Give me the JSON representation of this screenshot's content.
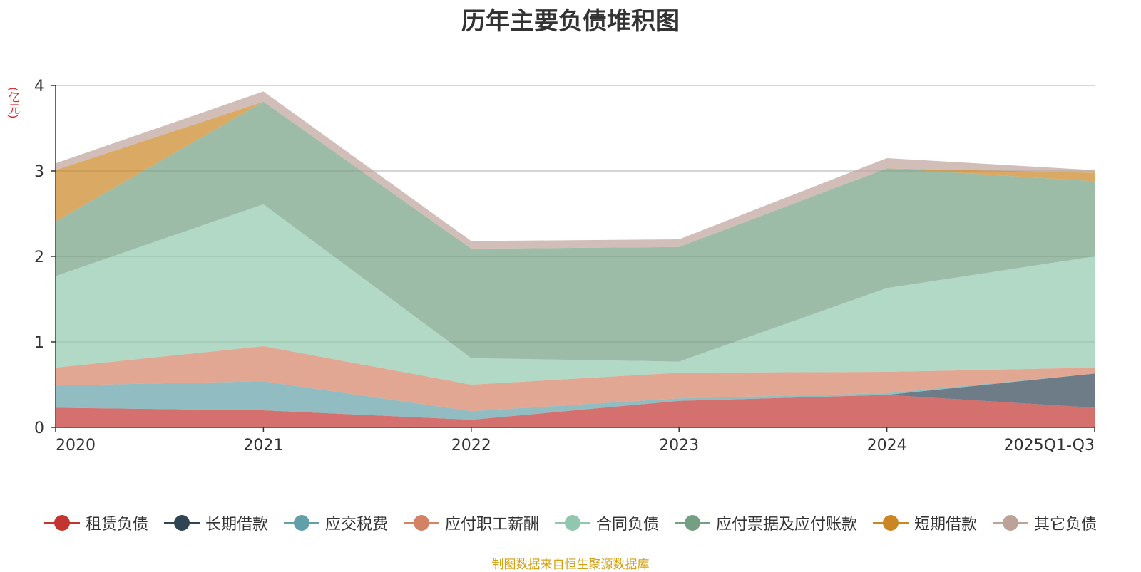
{
  "chart_data": {
    "type": "area",
    "stacked": true,
    "title": "历年主要负债堆积图",
    "ylabel": "(亿元)",
    "ylim": [
      0,
      4
    ],
    "yticks": [
      "0",
      "1",
      "2",
      "3",
      "4"
    ],
    "grid": true,
    "categories": [
      "2020",
      "2021",
      "2022",
      "2023",
      "2024",
      "2025Q1-Q3"
    ],
    "series": [
      {
        "name": "租赁负债",
        "color": "#c23531",
        "values": [
          0.23,
          0.2,
          0.09,
          0.31,
          0.38,
          0.23
        ]
      },
      {
        "name": "长期借款",
        "color": "#2f4554",
        "values": [
          0.0,
          0.0,
          0.0,
          0.0,
          0.0,
          0.4
        ]
      },
      {
        "name": "应交税费",
        "color": "#61a0a8",
        "values": [
          0.26,
          0.34,
          0.1,
          0.03,
          0.02,
          0.0
        ]
      },
      {
        "name": "应付职工薪酬",
        "color": "#d48265",
        "values": [
          0.21,
          0.41,
          0.31,
          0.3,
          0.25,
          0.07
        ]
      },
      {
        "name": "合同负债",
        "color": "#91c7ae",
        "values": [
          1.07,
          1.66,
          0.31,
          0.13,
          0.98,
          1.3
        ]
      },
      {
        "name": "应付票据及应付账款",
        "color": "#749f83",
        "values": [
          0.64,
          1.2,
          1.28,
          1.34,
          1.4,
          0.88
        ]
      },
      {
        "name": "短期借款",
        "color": "#ca8622",
        "values": [
          0.6,
          0.0,
          0.0,
          0.0,
          0.0,
          0.1
        ]
      },
      {
        "name": "其它负债",
        "color": "#bda29a",
        "values": [
          0.08,
          0.12,
          0.09,
          0.09,
          0.12,
          0.03
        ]
      }
    ],
    "legend_position": "bottom"
  },
  "footer": {
    "source": "制图数据来自恒生聚源数据库"
  }
}
